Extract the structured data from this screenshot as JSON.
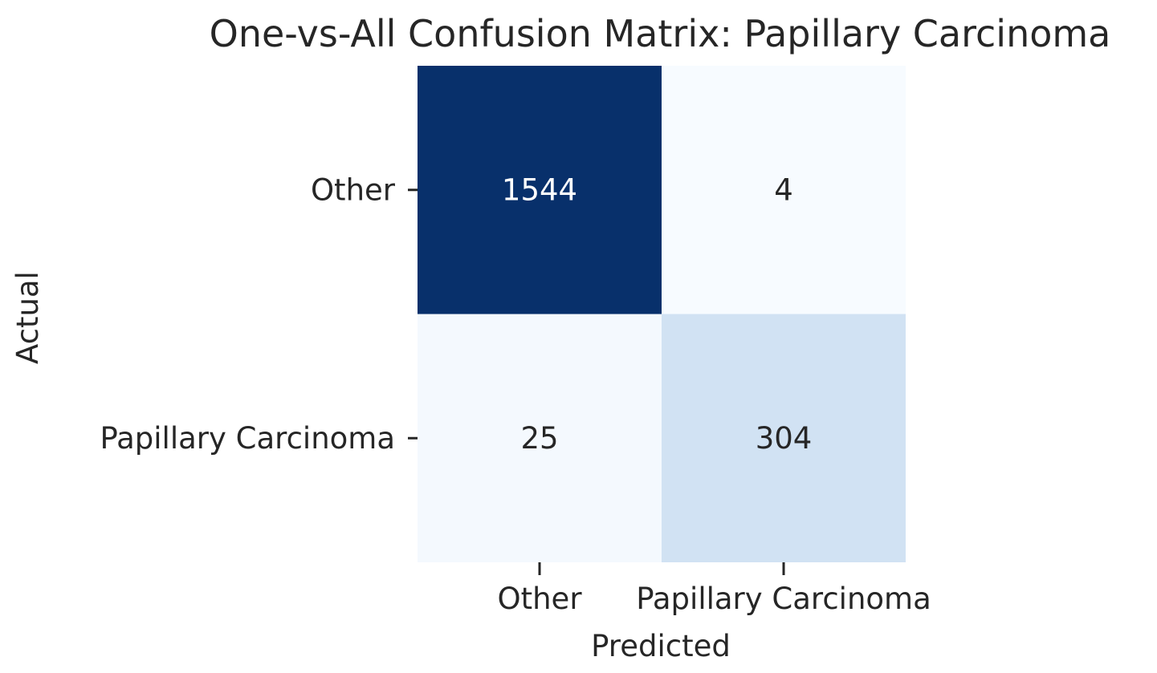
{
  "chart_data": {
    "type": "heatmap",
    "title": "One-vs-All Confusion Matrix: Papillary Carcinoma",
    "xlabel": "Predicted",
    "ylabel": "Actual",
    "x_categories": [
      "Other",
      "Papillary Carcinoma"
    ],
    "y_categories": [
      "Other",
      "Papillary Carcinoma"
    ],
    "values": [
      [
        1544,
        4
      ],
      [
        25,
        304
      ]
    ],
    "colormap": "Blues",
    "colorbar": false,
    "annotations": true
  }
}
